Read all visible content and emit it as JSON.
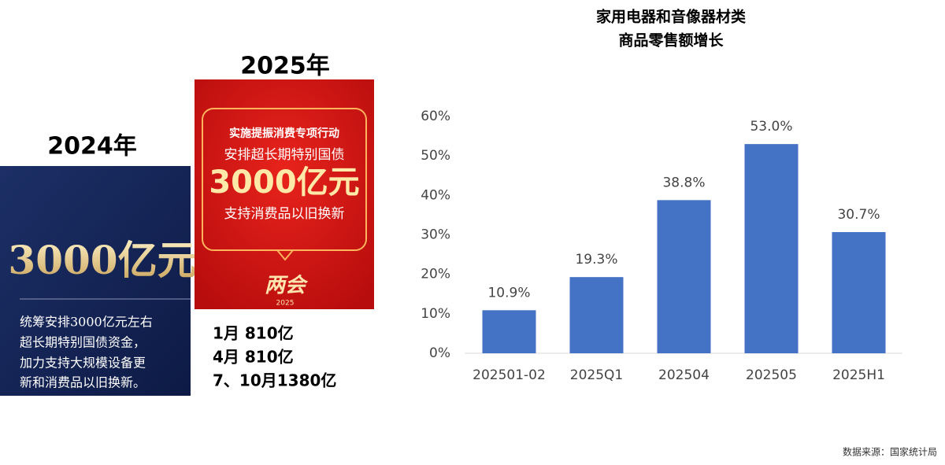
{
  "left_panel": {
    "year": "2024年",
    "amount": "3000亿元",
    "lines": [
      "统筹安排3000亿元左右",
      "超长期特别国债资金，",
      "加力支持大规模设备更",
      "新和消费品以旧换新。"
    ]
  },
  "middle_panel": {
    "year": "2025年",
    "lines": [
      "实施提振消费专项行动",
      "安排超长期特别国债"
    ],
    "amount": "3000亿元",
    "line_after": "支持消费品以旧换新",
    "badge": "两会",
    "badge_year": "2025",
    "schedule": [
      "1月 810亿",
      "4月 810亿",
      "7、10月1380亿"
    ]
  },
  "chart_data": {
    "type": "bar",
    "title": [
      "家用电器和音像器材类",
      "商品零售额增长"
    ],
    "categories": [
      "202501-02",
      "2025Q1",
      "202504",
      "202505",
      "2025H1"
    ],
    "values": [
      10.9,
      19.3,
      38.8,
      53.0,
      30.7
    ],
    "value_labels": [
      "10.9%",
      "19.3%",
      "38.8%",
      "53.0%",
      "30.7%"
    ],
    "color": "#4472c4",
    "grid": false,
    "ylim": [
      0,
      60
    ],
    "yticks": [
      {
        "value": 0,
        "label": "0%"
      },
      {
        "value": 10,
        "label": "10%"
      },
      {
        "value": 20,
        "label": "20%"
      },
      {
        "value": 30,
        "label": "30%"
      },
      {
        "value": 40,
        "label": "40%"
      },
      {
        "value": 50,
        "label": "50%"
      },
      {
        "value": 60,
        "label": "60%"
      }
    ],
    "source": "数据来源：国家统计局"
  }
}
